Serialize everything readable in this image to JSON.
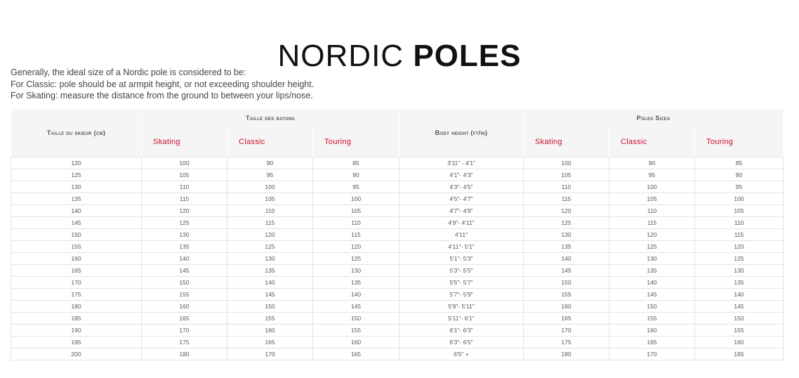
{
  "title": {
    "light": "NORDIC ",
    "bold": "POLES"
  },
  "intro": [
    "Generally, the ideal size of a Nordic pole is considered to be:",
    "For Classic: pole should be at armpit height, or not exceeding shoulder height.",
    "For Skating: measure the distance from the ground to between your lips/nose."
  ],
  "table": {
    "col_skier": "Taille du skieur (cm)",
    "group_fr": "Taille des batons",
    "col_body": "Body height (ft/in)",
    "group_en": "Poles Sizes",
    "sub": [
      "Skating",
      "Classic",
      "Touring"
    ],
    "accent": "#c8102e",
    "rows": [
      [
        "120",
        "100",
        "90",
        "85",
        "3'11\" - 4'1\"",
        "100",
        "90",
        "85"
      ],
      [
        "125",
        "105",
        "95",
        "90",
        "4'1\"- 4'3\"",
        "105",
        "95",
        "90"
      ],
      [
        "130",
        "110",
        "100",
        "95",
        "4'3\"- 4'5\"",
        "110",
        "100",
        "95"
      ],
      [
        "135",
        "115",
        "105",
        "100",
        "4'5\"- 4'7\"",
        "115",
        "105",
        "100"
      ],
      [
        "140",
        "120",
        "110",
        "105",
        "4'7\"- 4'9\"",
        "120",
        "110",
        "105"
      ],
      [
        "145",
        "125",
        "115",
        "110",
        "4'9\"- 4'11\"",
        "125",
        "115",
        "110"
      ],
      [
        "150",
        "130",
        "120",
        "115",
        "4'11\"",
        "130",
        "120",
        "115"
      ],
      [
        "155",
        "135",
        "125",
        "120",
        "4'11\"- 5'1\"",
        "135",
        "125",
        "120"
      ],
      [
        "160",
        "140",
        "130",
        "125",
        "5'1\"- 5'3\"",
        "140",
        "130",
        "125"
      ],
      [
        "165",
        "145",
        "135",
        "130",
        "5'3\"- 5'5\"",
        "145",
        "135",
        "130"
      ],
      [
        "170",
        "150",
        "140",
        "135",
        "5'5\"- 5'7\"",
        "150",
        "140",
        "135"
      ],
      [
        "175",
        "155",
        "145",
        "140",
        "5'7\"- 5'9\"",
        "155",
        "145",
        "140"
      ],
      [
        "180",
        "160",
        "150",
        "145",
        "5'9\"- 5'11\"",
        "160",
        "150",
        "145"
      ],
      [
        "185",
        "165",
        "155",
        "150",
        "5'11\"- 6'1\"",
        "165",
        "155",
        "150"
      ],
      [
        "190",
        "170",
        "160",
        "155",
        "6'1\"- 6'3\"",
        "170",
        "160",
        "155"
      ],
      [
        "195",
        "175",
        "165",
        "160",
        "6'3\"- 6'5\"",
        "175",
        "165",
        "160"
      ],
      [
        "200",
        "180",
        "170",
        "165",
        "6'5\" +",
        "180",
        "170",
        "165"
      ]
    ]
  }
}
